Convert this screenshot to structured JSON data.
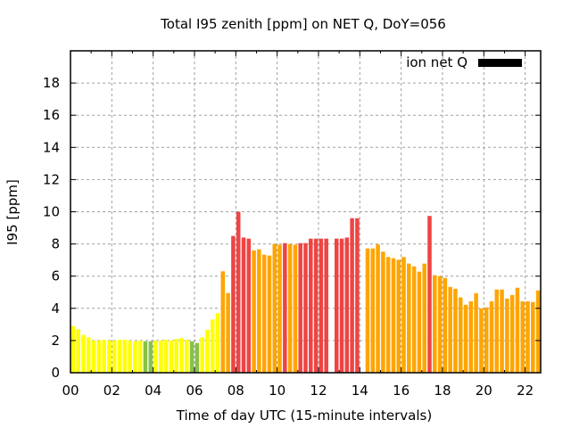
{
  "chart_data": {
    "type": "bar",
    "title": "Total I95 zenith [ppm] on NET Q, DoY=056",
    "xlabel": "Time of day UTC (15-minute intervals)",
    "ylabel": "I95 [ppm]",
    "xlim": [
      0,
      22.75
    ],
    "ylim": [
      0,
      20
    ],
    "grid": true,
    "xticks": [
      0,
      2,
      4,
      6,
      8,
      10,
      12,
      14,
      16,
      18,
      20,
      22
    ],
    "xtick_labels": [
      "00",
      "02",
      "04",
      "06",
      "08",
      "10",
      "12",
      "14",
      "16",
      "18",
      "20",
      "22"
    ],
    "yticks": [
      0,
      2,
      4,
      6,
      8,
      10,
      12,
      14,
      16,
      18
    ],
    "ytick_labels": [
      "0",
      "2",
      "4",
      "6",
      "8",
      "10",
      "12",
      "14",
      "16",
      "18"
    ],
    "legend": {
      "position": "top-right",
      "entries": [
        {
          "label": "ion net Q",
          "color": "#000000"
        }
      ]
    },
    "interval_hours": 0.25,
    "color_classes": {
      "green": "#88c14a",
      "yellow": "#ffff00",
      "orange": "#ffa500",
      "red": "#ee4444"
    },
    "series": [
      {
        "name": "ion net Q",
        "points": [
          {
            "t": 0.0,
            "v": 2.9,
            "c": "yellow"
          },
          {
            "t": 0.25,
            "v": 2.7,
            "c": "yellow"
          },
          {
            "t": 0.5,
            "v": 2.35,
            "c": "yellow"
          },
          {
            "t": 0.75,
            "v": 2.2,
            "c": "yellow"
          },
          {
            "t": 1.0,
            "v": 2.0,
            "c": "yellow"
          },
          {
            "t": 1.25,
            "v": 2.0,
            "c": "yellow"
          },
          {
            "t": 1.5,
            "v": 2.05,
            "c": "yellow"
          },
          {
            "t": 1.75,
            "v": 2.0,
            "c": "yellow"
          },
          {
            "t": 2.0,
            "v": 2.0,
            "c": "yellow"
          },
          {
            "t": 2.25,
            "v": 2.05,
            "c": "yellow"
          },
          {
            "t": 2.5,
            "v": 2.05,
            "c": "yellow"
          },
          {
            "t": 2.75,
            "v": 2.0,
            "c": "yellow"
          },
          {
            "t": 3.0,
            "v": 1.95,
            "c": "yellow"
          },
          {
            "t": 3.25,
            "v": 2.0,
            "c": "yellow"
          },
          {
            "t": 3.5,
            "v": 1.95,
            "c": "green"
          },
          {
            "t": 3.75,
            "v": 1.95,
            "c": "green"
          },
          {
            "t": 4.0,
            "v": 2.0,
            "c": "yellow"
          },
          {
            "t": 4.25,
            "v": 2.0,
            "c": "yellow"
          },
          {
            "t": 4.5,
            "v": 2.05,
            "c": "yellow"
          },
          {
            "t": 4.75,
            "v": 2.0,
            "c": "yellow"
          },
          {
            "t": 5.0,
            "v": 2.1,
            "c": "yellow"
          },
          {
            "t": 5.25,
            "v": 2.15,
            "c": "yellow"
          },
          {
            "t": 5.5,
            "v": 2.05,
            "c": "yellow"
          },
          {
            "t": 5.75,
            "v": 1.95,
            "c": "green"
          },
          {
            "t": 6.0,
            "v": 1.85,
            "c": "green"
          },
          {
            "t": 6.25,
            "v": 2.2,
            "c": "yellow"
          },
          {
            "t": 6.5,
            "v": 2.67,
            "c": "yellow"
          },
          {
            "t": 6.75,
            "v": 3.3,
            "c": "yellow"
          },
          {
            "t": 7.0,
            "v": 3.7,
            "c": "yellow"
          },
          {
            "t": 7.25,
            "v": 6.3,
            "c": "orange"
          },
          {
            "t": 7.5,
            "v": 4.95,
            "c": "orange"
          },
          {
            "t": 7.75,
            "v": 8.5,
            "c": "red"
          },
          {
            "t": 8.0,
            "v": 10.0,
            "c": "red"
          },
          {
            "t": 8.25,
            "v": 8.4,
            "c": "red"
          },
          {
            "t": 8.5,
            "v": 8.33,
            "c": "red"
          },
          {
            "t": 8.75,
            "v": 7.6,
            "c": "orange"
          },
          {
            "t": 9.0,
            "v": 7.67,
            "c": "orange"
          },
          {
            "t": 9.25,
            "v": 7.33,
            "c": "orange"
          },
          {
            "t": 9.5,
            "v": 7.28,
            "c": "orange"
          },
          {
            "t": 9.75,
            "v": 8.0,
            "c": "orange"
          },
          {
            "t": 10.0,
            "v": 7.95,
            "c": "orange"
          },
          {
            "t": 10.25,
            "v": 8.05,
            "c": "red"
          },
          {
            "t": 10.5,
            "v": 8.0,
            "c": "orange"
          },
          {
            "t": 10.75,
            "v": 7.95,
            "c": "orange"
          },
          {
            "t": 11.0,
            "v": 8.05,
            "c": "red"
          },
          {
            "t": 11.25,
            "v": 8.05,
            "c": "red"
          },
          {
            "t": 11.5,
            "v": 8.33,
            "c": "red"
          },
          {
            "t": 11.75,
            "v": 8.33,
            "c": "red"
          },
          {
            "t": 12.0,
            "v": 8.33,
            "c": "red"
          },
          {
            "t": 12.25,
            "v": 8.33,
            "c": "red"
          },
          {
            "t": 12.75,
            "v": 8.33,
            "c": "red"
          },
          {
            "t": 13.0,
            "v": 8.33,
            "c": "red"
          },
          {
            "t": 13.25,
            "v": 8.4,
            "c": "red"
          },
          {
            "t": 13.5,
            "v": 9.6,
            "c": "red"
          },
          {
            "t": 13.75,
            "v": 9.6,
            "c": "red"
          },
          {
            "t": 14.25,
            "v": 7.72,
            "c": "orange"
          },
          {
            "t": 14.5,
            "v": 7.72,
            "c": "orange"
          },
          {
            "t": 14.75,
            "v": 7.97,
            "c": "orange"
          },
          {
            "t": 15.0,
            "v": 7.52,
            "c": "orange"
          },
          {
            "t": 15.25,
            "v": 7.19,
            "c": "orange"
          },
          {
            "t": 15.5,
            "v": 7.11,
            "c": "orange"
          },
          {
            "t": 15.75,
            "v": 7.02,
            "c": "orange"
          },
          {
            "t": 16.0,
            "v": 7.19,
            "c": "orange"
          },
          {
            "t": 16.25,
            "v": 6.78,
            "c": "orange"
          },
          {
            "t": 16.5,
            "v": 6.61,
            "c": "orange"
          },
          {
            "t": 16.75,
            "v": 6.28,
            "c": "orange"
          },
          {
            "t": 17.0,
            "v": 6.78,
            "c": "orange"
          },
          {
            "t": 17.25,
            "v": 9.74,
            "c": "red"
          },
          {
            "t": 17.5,
            "v": 6.06,
            "c": "orange"
          },
          {
            "t": 17.75,
            "v": 6.0,
            "c": "orange"
          },
          {
            "t": 18.0,
            "v": 5.89,
            "c": "orange"
          },
          {
            "t": 18.25,
            "v": 5.33,
            "c": "orange"
          },
          {
            "t": 18.5,
            "v": 5.22,
            "c": "orange"
          },
          {
            "t": 18.75,
            "v": 4.68,
            "c": "orange"
          },
          {
            "t": 19.0,
            "v": 4.22,
            "c": "orange"
          },
          {
            "t": 19.25,
            "v": 4.44,
            "c": "orange"
          },
          {
            "t": 19.5,
            "v": 4.94,
            "c": "orange"
          },
          {
            "t": 19.75,
            "v": 4.0,
            "c": "orange"
          },
          {
            "t": 20.0,
            "v": 4.06,
            "c": "orange"
          },
          {
            "t": 20.25,
            "v": 4.44,
            "c": "orange"
          },
          {
            "t": 20.5,
            "v": 5.17,
            "c": "orange"
          },
          {
            "t": 20.75,
            "v": 5.17,
            "c": "orange"
          },
          {
            "t": 21.0,
            "v": 4.61,
            "c": "orange"
          },
          {
            "t": 21.25,
            "v": 4.83,
            "c": "orange"
          },
          {
            "t": 21.5,
            "v": 5.28,
            "c": "orange"
          },
          {
            "t": 21.75,
            "v": 4.44,
            "c": "orange"
          },
          {
            "t": 22.0,
            "v": 4.44,
            "c": "orange"
          },
          {
            "t": 22.25,
            "v": 4.39,
            "c": "orange"
          },
          {
            "t": 22.5,
            "v": 5.11,
            "c": "orange"
          }
        ]
      }
    ]
  }
}
